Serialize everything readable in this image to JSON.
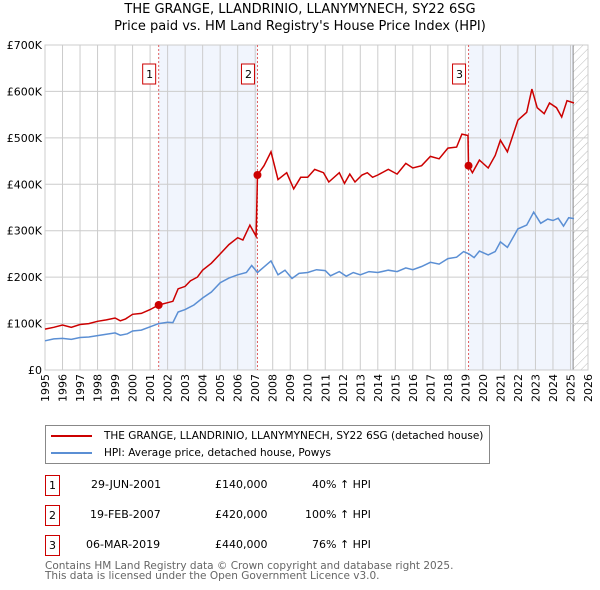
{
  "title": "THE GRANGE, LLANDRINIO, LLANYMYNECH, SY22 6SG",
  "subtitle": "Price paid vs. HM Land Registry's House Price Index (HPI)",
  "chart_data": {
    "type": "line",
    "title": "THE GRANGE, LLANDRINIO, LLANYMYNECH, SY22 6SG",
    "subtitle": "Price paid vs. HM Land Registry's House Price Index (HPI)",
    "xlim": [
      1995,
      2026
    ],
    "ylim": [
      0,
      700000
    ],
    "x_ticks": [
      "1995",
      "1996",
      "1997",
      "1998",
      "1999",
      "2000",
      "2001",
      "2002",
      "2003",
      "2004",
      "2005",
      "2006",
      "2007",
      "2008",
      "2009",
      "2010",
      "2011",
      "2012",
      "2013",
      "2014",
      "2015",
      "2016",
      "2017",
      "2018",
      "2019",
      "2020",
      "2021",
      "2022",
      "2023",
      "2024",
      "2025",
      "2026"
    ],
    "y_ticks": [
      {
        "v": 0,
        "label": "£0"
      },
      {
        "v": 100000,
        "label": "£100K"
      },
      {
        "v": 200000,
        "label": "£200K"
      },
      {
        "v": 300000,
        "label": "£300K"
      },
      {
        "v": 400000,
        "label": "£400K"
      },
      {
        "v": 500000,
        "label": "£500K"
      },
      {
        "v": 600000,
        "label": "£600K"
      },
      {
        "v": 700000,
        "label": "£700K"
      }
    ],
    "grid": true,
    "forecast_hatch_from": 2025.15,
    "series": [
      {
        "name": "THE GRANGE, LLANDRINIO, LLANYMYNECH, SY22 6SG (detached house)",
        "color": "#cc0000",
        "points": [
          [
            1995,
            88000
          ],
          [
            1995.5,
            92000
          ],
          [
            1996,
            97000
          ],
          [
            1996.5,
            92000
          ],
          [
            1997,
            98000
          ],
          [
            1997.5,
            100000
          ],
          [
            1998,
            105000
          ],
          [
            1998.5,
            108000
          ],
          [
            1999,
            112000
          ],
          [
            1999.3,
            106000
          ],
          [
            1999.6,
            110000
          ],
          [
            2000,
            120000
          ],
          [
            2000.5,
            122000
          ],
          [
            2001,
            130000
          ],
          [
            2001.49,
            140000
          ],
          [
            2002,
            145000
          ],
          [
            2002.3,
            148000
          ],
          [
            2002.6,
            175000
          ],
          [
            2003,
            180000
          ],
          [
            2003.3,
            192000
          ],
          [
            2003.7,
            200000
          ],
          [
            2004,
            215000
          ],
          [
            2004.5,
            230000
          ],
          [
            2005,
            250000
          ],
          [
            2005.5,
            270000
          ],
          [
            2006,
            285000
          ],
          [
            2006.3,
            280000
          ],
          [
            2006.7,
            312000
          ],
          [
            2007.05,
            288000
          ],
          [
            2007.13,
            420000
          ],
          [
            2007.5,
            440000
          ],
          [
            2007.9,
            470000
          ],
          [
            2008.3,
            410000
          ],
          [
            2008.8,
            425000
          ],
          [
            2009.2,
            390000
          ],
          [
            2009.6,
            415000
          ],
          [
            2010,
            415000
          ],
          [
            2010.4,
            432000
          ],
          [
            2010.9,
            425000
          ],
          [
            2011.2,
            405000
          ],
          [
            2011.8,
            425000
          ],
          [
            2012.1,
            402000
          ],
          [
            2012.4,
            422000
          ],
          [
            2012.7,
            405000
          ],
          [
            2013.1,
            420000
          ],
          [
            2013.4,
            425000
          ],
          [
            2013.7,
            415000
          ],
          [
            2014,
            420000
          ],
          [
            2014.6,
            432000
          ],
          [
            2015.1,
            422000
          ],
          [
            2015.6,
            445000
          ],
          [
            2016,
            435000
          ],
          [
            2016.5,
            440000
          ],
          [
            2017,
            460000
          ],
          [
            2017.5,
            455000
          ],
          [
            2018,
            478000
          ],
          [
            2018.5,
            480000
          ],
          [
            2018.8,
            508000
          ],
          [
            2019.15,
            505000
          ],
          [
            2019.18,
            440000
          ],
          [
            2019.4,
            425000
          ],
          [
            2019.8,
            452000
          ],
          [
            2020.3,
            435000
          ],
          [
            2020.7,
            462000
          ],
          [
            2021,
            495000
          ],
          [
            2021.4,
            470000
          ],
          [
            2022,
            538000
          ],
          [
            2022.5,
            555000
          ],
          [
            2022.8,
            605000
          ],
          [
            2023.1,
            565000
          ],
          [
            2023.5,
            552000
          ],
          [
            2023.8,
            575000
          ],
          [
            2024.2,
            565000
          ],
          [
            2024.5,
            545000
          ],
          [
            2024.8,
            580000
          ],
          [
            2025.2,
            575000
          ]
        ]
      },
      {
        "name": "HPI: Average price, detached house, Powys",
        "color": "#5b8fd4",
        "points": [
          [
            1995,
            63000
          ],
          [
            1995.5,
            67000
          ],
          [
            1996,
            68000
          ],
          [
            1996.5,
            66000
          ],
          [
            1997,
            70000
          ],
          [
            1997.5,
            71000
          ],
          [
            1998,
            74000
          ],
          [
            1998.5,
            77000
          ],
          [
            1999,
            80000
          ],
          [
            1999.3,
            75000
          ],
          [
            1999.7,
            78000
          ],
          [
            2000,
            84000
          ],
          [
            2000.5,
            86000
          ],
          [
            2001,
            93000
          ],
          [
            2001.49,
            100000
          ],
          [
            2002,
            103000
          ],
          [
            2002.3,
            102000
          ],
          [
            2002.6,
            125000
          ],
          [
            2003,
            130000
          ],
          [
            2003.5,
            140000
          ],
          [
            2004,
            155000
          ],
          [
            2004.5,
            168000
          ],
          [
            2005,
            188000
          ],
          [
            2005.5,
            198000
          ],
          [
            2006,
            205000
          ],
          [
            2006.5,
            210000
          ],
          [
            2006.8,
            225000
          ],
          [
            2007.13,
            210000
          ],
          [
            2007.5,
            222000
          ],
          [
            2007.9,
            235000
          ],
          [
            2008.3,
            205000
          ],
          [
            2008.7,
            215000
          ],
          [
            2009.1,
            197000
          ],
          [
            2009.5,
            208000
          ],
          [
            2010,
            210000
          ],
          [
            2010.5,
            216000
          ],
          [
            2011,
            214000
          ],
          [
            2011.3,
            203000
          ],
          [
            2011.8,
            212000
          ],
          [
            2012.2,
            202000
          ],
          [
            2012.6,
            210000
          ],
          [
            2013,
            205000
          ],
          [
            2013.5,
            212000
          ],
          [
            2014,
            210000
          ],
          [
            2014.6,
            215000
          ],
          [
            2015.1,
            212000
          ],
          [
            2015.6,
            220000
          ],
          [
            2016,
            216000
          ],
          [
            2016.5,
            223000
          ],
          [
            2017,
            232000
          ],
          [
            2017.5,
            228000
          ],
          [
            2018,
            240000
          ],
          [
            2018.5,
            243000
          ],
          [
            2018.9,
            255000
          ],
          [
            2019.2,
            250000
          ],
          [
            2019.5,
            242000
          ],
          [
            2019.8,
            256000
          ],
          [
            2020.3,
            248000
          ],
          [
            2020.7,
            255000
          ],
          [
            2021,
            276000
          ],
          [
            2021.4,
            264000
          ],
          [
            2022,
            304000
          ],
          [
            2022.5,
            312000
          ],
          [
            2022.9,
            340000
          ],
          [
            2023.3,
            316000
          ],
          [
            2023.7,
            325000
          ],
          [
            2024,
            322000
          ],
          [
            2024.3,
            327000
          ],
          [
            2024.6,
            310000
          ],
          [
            2024.9,
            328000
          ],
          [
            2025.2,
            326000
          ]
        ]
      }
    ],
    "sales": [
      {
        "n": "1",
        "x": 2001.49,
        "y": 140000,
        "date": "29-JUN-2001",
        "price": "£140,000",
        "hpi": "40% ↑ HPI"
      },
      {
        "n": "2",
        "x": 2007.13,
        "y": 420000,
        "date": "19-FEB-2007",
        "price": "£420,000",
        "hpi": "100% ↑ HPI"
      },
      {
        "n": "3",
        "x": 2019.18,
        "y": 440000,
        "date": "06-MAR-2019",
        "price": "£440,000",
        "hpi": "76% ↑ HPI"
      }
    ]
  },
  "legend": [
    "THE GRANGE, LLANDRINIO, LLANYMYNECH, SY22 6SG (detached house)",
    "HPI: Average price, detached house, Powys"
  ],
  "footer": [
    "Contains HM Land Registry data © Crown copyright and database right 2025.",
    "This data is licensed under the Open Government Licence v3.0."
  ]
}
